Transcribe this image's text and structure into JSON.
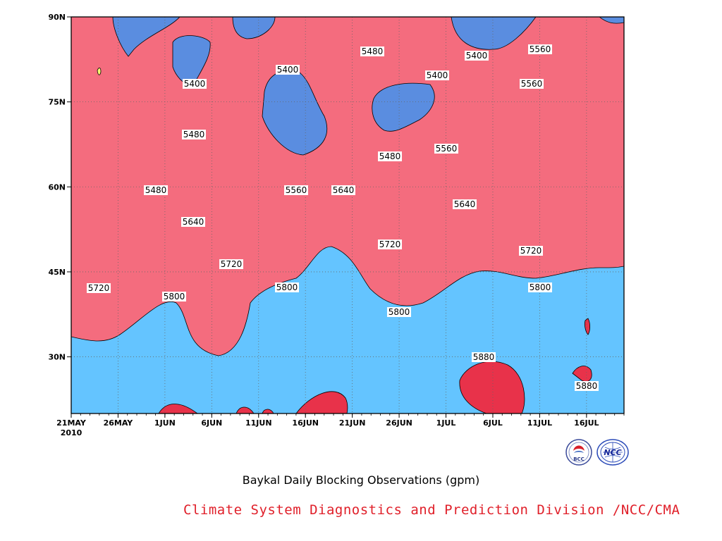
{
  "chart_data": {
    "type": "contour",
    "title": "Baykal Daily Blocking Observations (gpm)",
    "x": {
      "ticks": [
        "21MAY",
        "26MAY",
        "1JUN",
        "6JUN",
        "11JUN",
        "16JUN",
        "21JUN",
        "26JUN",
        "1JUL",
        "6JUL",
        "11JUL",
        "16JUL"
      ],
      "first_tick_year": "2010",
      "range_days": [
        0,
        59
      ]
    },
    "y": {
      "ticks": [
        "90N",
        "75N",
        "60N",
        "45N",
        "30N"
      ],
      "range_lat": [
        20,
        90
      ]
    },
    "levels": [
      5400,
      5480,
      5560,
      5640,
      5720,
      5800,
      5880
    ],
    "fill_colors": {
      "below_5400": "#5a8de0",
      "5400_5480": "#64c4ff",
      "5480_5560": "#fafa73",
      "5560_5640": "#fddb9b",
      "5640_5720": "#fda66a",
      "5720_5800": "#fc7848",
      "5800_5880": "#f46c7e",
      "above_5880": "#e8324a"
    },
    "contour_labels": [
      {
        "value": "5400"
      },
      {
        "value": "5400"
      },
      {
        "value": "5480"
      },
      {
        "value": "5400"
      },
      {
        "value": "5400"
      },
      {
        "value": "5480"
      },
      {
        "value": "5480"
      },
      {
        "value": "5560"
      },
      {
        "value": "5480"
      },
      {
        "value": "5560"
      },
      {
        "value": "5560"
      },
      {
        "value": "5560"
      },
      {
        "value": "5640"
      },
      {
        "value": "5640"
      },
      {
        "value": "5640"
      },
      {
        "value": "5720"
      },
      {
        "value": "5720"
      },
      {
        "value": "5720"
      },
      {
        "value": "5720"
      },
      {
        "value": "5800"
      },
      {
        "value": "5800"
      },
      {
        "value": "5800"
      },
      {
        "value": "5800"
      },
      {
        "value": "5880"
      },
      {
        "value": "5880"
      }
    ],
    "grid": "dotted",
    "legend": "none"
  },
  "credit": "Climate System Diagnostics and Prediction Division /NCC/CMA",
  "logos": [
    {
      "name": "bcc-logo",
      "text": "BCC"
    },
    {
      "name": "ncc-logo",
      "text": "NCC"
    }
  ]
}
